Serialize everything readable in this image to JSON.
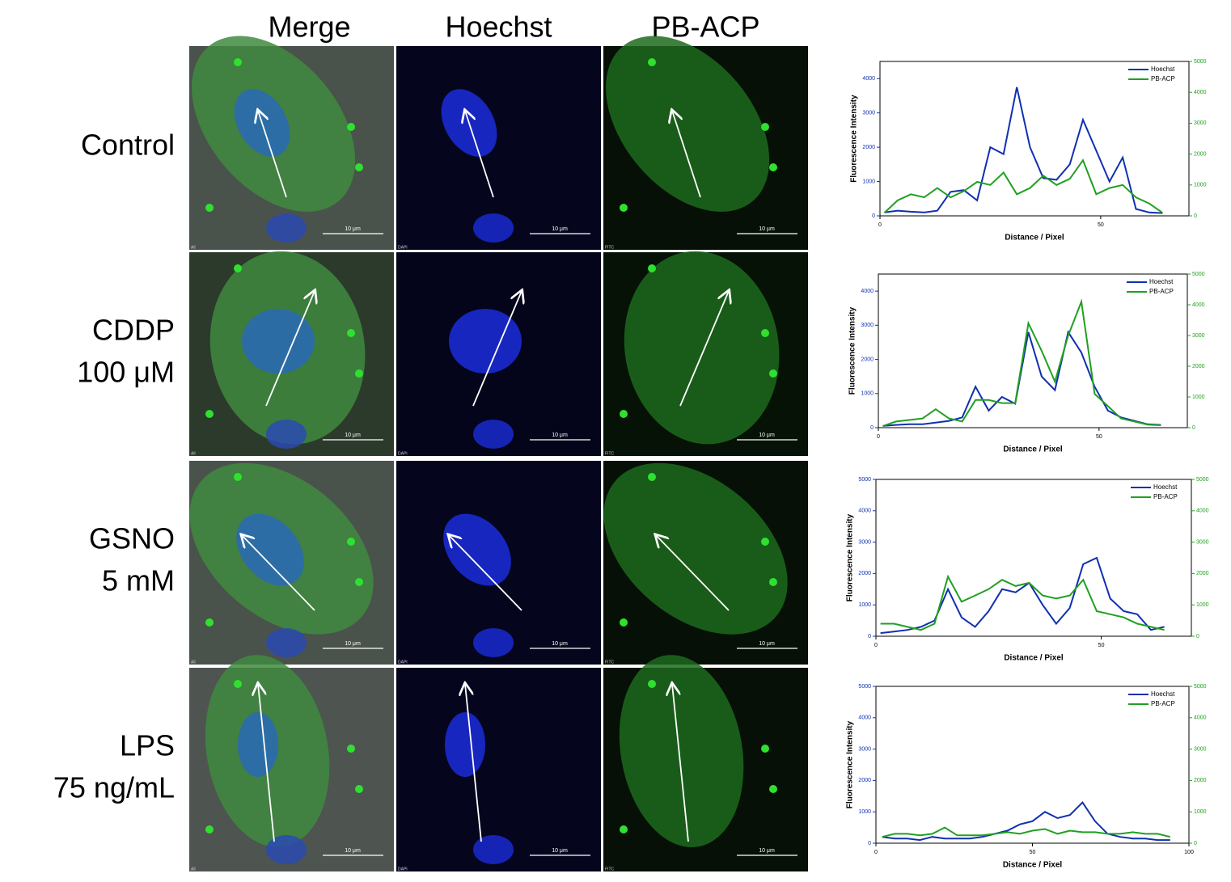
{
  "columns": [
    "Merge",
    "Hoechst",
    "PB-ACP"
  ],
  "rows": [
    [
      "Control"
    ],
    [
      "CDDP",
      "100 μM"
    ],
    [
      "GSNO",
      "5 mM"
    ],
    [
      "LPS",
      "75 ng/mL"
    ]
  ],
  "panel_labels": [
    "All",
    "DAPI",
    "FITC"
  ],
  "scale_label": "10 μm",
  "chart_data": [
    {
      "type": "line",
      "xlabel": "Distance / Pixel",
      "ylabel": "Fluorescence Intensity",
      "x": [
        1,
        4,
        7,
        10,
        13,
        16,
        19,
        22,
        25,
        28,
        31,
        34,
        37,
        40,
        43,
        46,
        49,
        52,
        55,
        58,
        61,
        64
      ],
      "xlim": [
        0,
        70
      ],
      "xticks": [
        0,
        50
      ],
      "ylim": [
        0,
        4500
      ],
      "yticks": [
        0,
        1000,
        2000,
        3000,
        4000
      ],
      "y2lim": [
        0,
        5000
      ],
      "y2ticks": [
        0,
        1000,
        2000,
        3000,
        4000,
        5000
      ],
      "series": [
        {
          "name": "Hoechst",
          "color": "#1030b0",
          "values": [
            100,
            150,
            120,
            100,
            150,
            700,
            750,
            450,
            2000,
            1800,
            3750,
            2000,
            1100,
            1050,
            1500,
            2800,
            1900,
            1000,
            1700,
            200,
            100,
            80
          ]
        },
        {
          "name": "PB-ACP",
          "color": "#20a020",
          "axis": "y2",
          "values": [
            100,
            500,
            700,
            600,
            900,
            600,
            800,
            1100,
            1000,
            1400,
            700,
            900,
            1300,
            1000,
            1200,
            1800,
            700,
            900,
            1000,
            600,
            400,
            100
          ]
        }
      ]
    },
    {
      "type": "line",
      "xlabel": "Distance / Pixel",
      "ylabel": "Fluorescence Intensity",
      "x": [
        1,
        4,
        7,
        10,
        13,
        16,
        19,
        22,
        25,
        28,
        31,
        34,
        37,
        40,
        43,
        46,
        49,
        52,
        55,
        58,
        61,
        64
      ],
      "xlim": [
        0,
        70
      ],
      "xticks": [
        0,
        50
      ],
      "ylim": [
        0,
        4500
      ],
      "yticks": [
        0,
        1000,
        2000,
        3000,
        4000
      ],
      "y2lim": [
        0,
        5000
      ],
      "y2ticks": [
        0,
        1000,
        2000,
        3000,
        4000,
        5000
      ],
      "series": [
        {
          "name": "Hoechst",
          "color": "#1030b0",
          "values": [
            50,
            80,
            100,
            100,
            150,
            200,
            300,
            1200,
            500,
            900,
            700,
            2800,
            1500,
            1100,
            2800,
            2200,
            1200,
            500,
            300,
            200,
            100,
            80
          ]
        },
        {
          "name": "PB-ACP",
          "color": "#20a020",
          "axis": "y2",
          "values": [
            50,
            200,
            250,
            300,
            600,
            300,
            200,
            900,
            900,
            800,
            800,
            3400,
            2500,
            1500,
            3000,
            4100,
            1100,
            700,
            300,
            200,
            100,
            80
          ]
        }
      ]
    },
    {
      "type": "line",
      "xlabel": "Distance / Pixel",
      "ylabel": "Fluorescence Intensity",
      "x": [
        1,
        4,
        7,
        10,
        13,
        16,
        19,
        22,
        25,
        28,
        31,
        34,
        37,
        40,
        43,
        46,
        49,
        52,
        55,
        58,
        61,
        64
      ],
      "xlim": [
        0,
        70
      ],
      "xticks": [
        0,
        50
      ],
      "ylim": [
        0,
        5000
      ],
      "yticks": [
        0,
        1000,
        2000,
        3000,
        4000,
        5000
      ],
      "y2lim": [
        0,
        5000
      ],
      "y2ticks": [
        0,
        1000,
        2000,
        3000,
        4000,
        5000
      ],
      "series": [
        {
          "name": "Hoechst",
          "color": "#1030b0",
          "values": [
            100,
            150,
            200,
            300,
            500,
            1500,
            600,
            300,
            800,
            1500,
            1400,
            1700,
            1000,
            400,
            900,
            2300,
            2500,
            1200,
            800,
            700,
            200,
            300
          ]
        },
        {
          "name": "PB-ACP",
          "color": "#20a020",
          "axis": "y2",
          "values": [
            400,
            400,
            300,
            200,
            400,
            1900,
            1100,
            1300,
            1500,
            1800,
            1600,
            1700,
            1300,
            1200,
            1300,
            1800,
            800,
            700,
            600,
            400,
            300,
            200
          ]
        }
      ]
    },
    {
      "type": "line",
      "xlabel": "Distance / Pixel",
      "ylabel": "Fluorescence Intensity",
      "x": [
        2,
        6,
        10,
        14,
        18,
        22,
        26,
        30,
        34,
        38,
        42,
        46,
        50,
        54,
        58,
        62,
        66,
        70,
        74,
        78,
        82,
        86,
        90,
        94
      ],
      "xlim": [
        0,
        100
      ],
      "xticks": [
        0,
        50,
        100
      ],
      "ylim": [
        0,
        5000
      ],
      "yticks": [
        0,
        1000,
        2000,
        3000,
        4000,
        5000
      ],
      "y2lim": [
        0,
        5000
      ],
      "y2ticks": [
        0,
        1000,
        2000,
        3000,
        4000,
        5000
      ],
      "series": [
        {
          "name": "Hoechst",
          "color": "#1030b0",
          "values": [
            200,
            150,
            150,
            100,
            200,
            150,
            150,
            150,
            200,
            300,
            400,
            600,
            700,
            1000,
            800,
            900,
            1300,
            700,
            300,
            200,
            150,
            150,
            100,
            100
          ]
        },
        {
          "name": "PB-ACP",
          "color": "#20a020",
          "axis": "y2",
          "values": [
            200,
            300,
            300,
            250,
            300,
            500,
            250,
            250,
            250,
            300,
            350,
            300,
            400,
            450,
            300,
            400,
            350,
            350,
            300,
            300,
            350,
            300,
            300,
            200
          ]
        }
      ]
    }
  ]
}
